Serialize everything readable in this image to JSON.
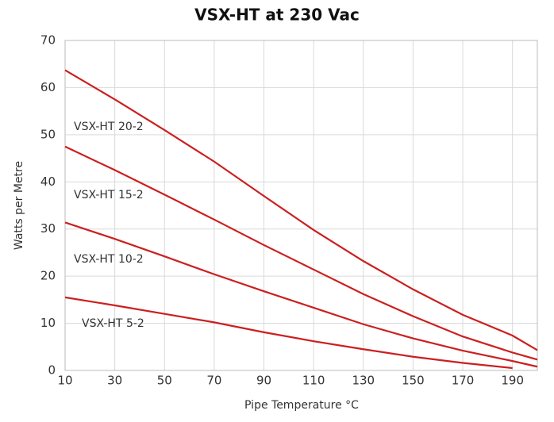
{
  "chart_data": {
    "type": "line",
    "title": "VSX-HT at 230 Vac",
    "xlabel": "Pipe Temperature °C",
    "ylabel": "Watts per Metre",
    "x": [
      10,
      30,
      50,
      70,
      90,
      110,
      130,
      150,
      170,
      190,
      200
    ],
    "series": [
      {
        "name": "VSX-HT 20-2",
        "color": "#cc1f1f",
        "values": [
          63.7,
          57.5,
          51,
          44.3,
          37,
          29.8,
          23.2,
          17.2,
          11.8,
          7.4,
          4.3
        ]
      },
      {
        "name": "VSX-HT 15-2",
        "color": "#cc1f1f",
        "values": [
          47.5,
          42.5,
          37.3,
          32,
          26.6,
          21.4,
          16.2,
          11.5,
          7.2,
          3.8,
          2.3
        ]
      },
      {
        "name": "VSX-HT 10-2",
        "color": "#cc1f1f",
        "values": [
          31.4,
          27.9,
          24.2,
          20.4,
          16.8,
          13.3,
          9.8,
          6.8,
          4.2,
          2,
          0.8
        ]
      },
      {
        "name": "VSX-HT 5-2",
        "color": "#cc1f1f",
        "values": [
          15.5,
          13.8,
          12,
          10.2,
          8.1,
          6.2,
          4.5,
          2.9,
          1.6,
          0.5,
          null
        ]
      }
    ],
    "xlim": [
      10,
      200
    ],
    "ylim": [
      0,
      70
    ],
    "xticks": [
      10,
      30,
      50,
      70,
      90,
      110,
      130,
      150,
      170,
      190
    ],
    "yticks": [
      0,
      10,
      20,
      30,
      40,
      50,
      60,
      70
    ],
    "grid": true
  }
}
